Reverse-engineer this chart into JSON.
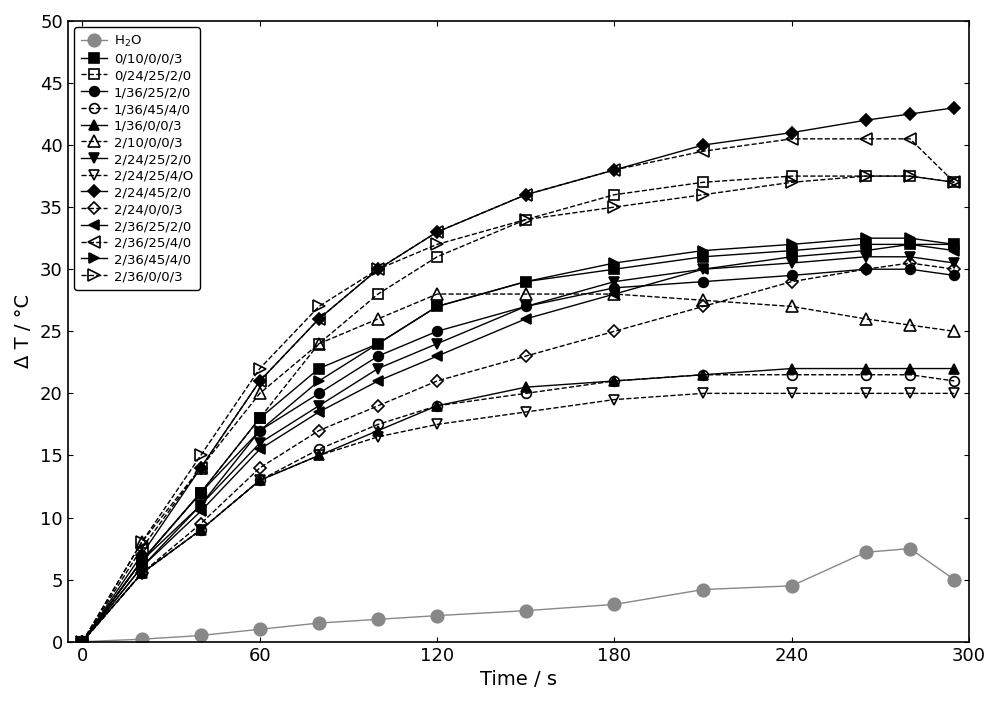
{
  "title": "",
  "xlabel": "Time / s",
  "ylabel": "Δ T / °C",
  "xlim": [
    -5,
    300
  ],
  "ylim": [
    0,
    50
  ],
  "xticks": [
    0,
    60,
    120,
    180,
    240,
    300
  ],
  "yticks": [
    0,
    5,
    10,
    15,
    20,
    25,
    30,
    35,
    40,
    45,
    50
  ],
  "series": [
    {
      "label": "H₂O",
      "marker": "o",
      "fillstyle": "full",
      "color": "#888888",
      "linestyle": "-",
      "markersize": 9,
      "linewidth": 1.0,
      "x": [
        0,
        20,
        40,
        60,
        80,
        100,
        120,
        150,
        180,
        210,
        240,
        265,
        280,
        295
      ],
      "y": [
        0,
        0.2,
        0.5,
        1.0,
        1.5,
        1.8,
        2.1,
        2.5,
        3.0,
        4.2,
        4.5,
        7.2,
        7.5,
        5.0
      ]
    },
    {
      "label": "0/10/0/0/3",
      "marker": "s",
      "fillstyle": "full",
      "color": "#000000",
      "linestyle": "-",
      "markersize": 7,
      "linewidth": 1.0,
      "x": [
        0,
        20,
        40,
        60,
        80,
        100,
        120,
        150,
        180,
        210,
        240,
        265,
        280,
        295
      ],
      "y": [
        0,
        6.5,
        12,
        18,
        22,
        24,
        27,
        29,
        30,
        31,
        31.5,
        32,
        32,
        32
      ]
    },
    {
      "label": "0/24/25/2/0",
      "marker": "s",
      "fillstyle": "none",
      "color": "#000000",
      "linestyle": "--",
      "markersize": 7,
      "linewidth": 1.0,
      "x": [
        0,
        20,
        40,
        60,
        80,
        100,
        120,
        150,
        180,
        210,
        240,
        265,
        280,
        295
      ],
      "y": [
        0,
        6.5,
        12,
        18,
        24,
        28,
        31,
        34,
        36,
        37,
        37.5,
        37.5,
        37.5,
        37
      ]
    },
    {
      "label": "1/36/25/2/0",
      "marker": "o",
      "fillstyle": "full",
      "color": "#000000",
      "linestyle": "-",
      "markersize": 7,
      "linewidth": 1.0,
      "x": [
        0,
        20,
        40,
        60,
        80,
        100,
        120,
        150,
        180,
        210,
        240,
        265,
        280,
        295
      ],
      "y": [
        0,
        6.5,
        12,
        17,
        20,
        23,
        25,
        27,
        28.5,
        29,
        29.5,
        30,
        30,
        29.5
      ]
    },
    {
      "label": "1/36/45/4/0",
      "marker": "o",
      "fillstyle": "none",
      "color": "#000000",
      "linestyle": "--",
      "markersize": 7,
      "linewidth": 1.0,
      "x": [
        0,
        20,
        40,
        60,
        80,
        100,
        120,
        150,
        180,
        210,
        240,
        265,
        280,
        295
      ],
      "y": [
        0,
        5.5,
        9,
        13,
        15.5,
        17.5,
        19,
        20,
        21,
        21.5,
        21.5,
        21.5,
        21.5,
        21
      ]
    },
    {
      "label": "1/36/0/0/3",
      "marker": "^",
      "fillstyle": "full",
      "color": "#000000",
      "linestyle": "-",
      "markersize": 7,
      "linewidth": 1.0,
      "x": [
        0,
        20,
        40,
        60,
        80,
        100,
        120,
        150,
        180,
        210,
        240,
        265,
        280,
        295
      ],
      "y": [
        0,
        5.5,
        9,
        13,
        15,
        17,
        19,
        20.5,
        21,
        21.5,
        22,
        22,
        22,
        22
      ]
    },
    {
      "label": "2/10/0/0/3",
      "marker": "^",
      "fillstyle": "none",
      "color": "#000000",
      "linestyle": "--",
      "markersize": 8,
      "linewidth": 1.0,
      "x": [
        0,
        20,
        40,
        60,
        80,
        100,
        120,
        150,
        180,
        210,
        240,
        265,
        280,
        295
      ],
      "y": [
        0,
        8,
        14,
        20,
        24,
        26,
        28,
        28,
        28,
        27.5,
        27,
        26,
        25.5,
        25
      ]
    },
    {
      "label": "2/24/25/2/0",
      "marker": "v",
      "fillstyle": "full",
      "color": "#000000",
      "linestyle": "-",
      "markersize": 7,
      "linewidth": 1.0,
      "x": [
        0,
        20,
        40,
        60,
        80,
        100,
        120,
        150,
        180,
        210,
        240,
        265,
        280,
        295
      ],
      "y": [
        0,
        6.5,
        11,
        16,
        19,
        22,
        24,
        27,
        29,
        30,
        30.5,
        31,
        31,
        30.5
      ]
    },
    {
      "label": "2/24/25/4/O",
      "marker": "v",
      "fillstyle": "none",
      "color": "#000000",
      "linestyle": "--",
      "markersize": 7,
      "linewidth": 1.0,
      "x": [
        0,
        20,
        40,
        60,
        80,
        100,
        120,
        150,
        180,
        210,
        240,
        265,
        280,
        295
      ],
      "y": [
        0,
        5.5,
        9,
        13,
        15,
        16.5,
        17.5,
        18.5,
        19.5,
        20,
        20,
        20,
        20,
        20
      ]
    },
    {
      "label": "2/24/45/2/0",
      "marker": "D",
      "fillstyle": "full",
      "color": "#000000",
      "linestyle": "-",
      "markersize": 6,
      "linewidth": 1.0,
      "x": [
        0,
        20,
        40,
        60,
        80,
        100,
        120,
        150,
        180,
        210,
        240,
        265,
        280,
        295
      ],
      "y": [
        0,
        7,
        14,
        21,
        26,
        30,
        33,
        36,
        38,
        40,
        41,
        42,
        42.5,
        43
      ]
    },
    {
      "label": "2/24/0/0/3",
      "marker": "D",
      "fillstyle": "none",
      "color": "#000000",
      "linestyle": "--",
      "markersize": 6,
      "linewidth": 1.0,
      "x": [
        0,
        20,
        40,
        60,
        80,
        100,
        120,
        150,
        180,
        210,
        240,
        265,
        280,
        295
      ],
      "y": [
        0,
        5.5,
        9.5,
        14,
        17,
        19,
        21,
        23,
        25,
        27,
        29,
        30,
        30.5,
        30
      ]
    },
    {
      "label": "2/36/25/2/0",
      "marker": "<",
      "fillstyle": "full",
      "color": "#000000",
      "linestyle": "-",
      "markersize": 7,
      "linewidth": 1.0,
      "x": [
        0,
        20,
        40,
        60,
        80,
        100,
        120,
        150,
        180,
        210,
        240,
        265,
        280,
        295
      ],
      "y": [
        0,
        6,
        10.5,
        15.5,
        18.5,
        21,
        23,
        26,
        28,
        30,
        31,
        31.5,
        32,
        31.5
      ]
    },
    {
      "label": "2/36/25/4/0",
      "marker": "<",
      "fillstyle": "none",
      "color": "#000000",
      "linestyle": "--",
      "markersize": 8,
      "linewidth": 1.0,
      "x": [
        0,
        20,
        40,
        60,
        80,
        100,
        120,
        150,
        180,
        210,
        240,
        265,
        280,
        295
      ],
      "y": [
        0,
        7.5,
        14,
        21,
        26,
        30,
        33,
        36,
        38,
        39.5,
        40.5,
        40.5,
        40.5,
        37
      ]
    },
    {
      "label": "2/36/45/4/0",
      "marker": ">",
      "fillstyle": "full",
      "color": "#000000",
      "linestyle": "-",
      "markersize": 7,
      "linewidth": 1.0,
      "x": [
        0,
        20,
        40,
        60,
        80,
        100,
        120,
        150,
        180,
        210,
        240,
        265,
        280,
        295
      ],
      "y": [
        0,
        6,
        11,
        17,
        21,
        24,
        27,
        29,
        30.5,
        31.5,
        32,
        32.5,
        32.5,
        32
      ]
    },
    {
      "label": "2/36/0/0/3",
      "marker": ">",
      "fillstyle": "none",
      "color": "#000000",
      "linestyle": "--",
      "markersize": 8,
      "linewidth": 1.0,
      "x": [
        0,
        20,
        40,
        60,
        80,
        100,
        120,
        150,
        180,
        210,
        240,
        265,
        280,
        295
      ],
      "y": [
        0,
        8,
        15,
        22,
        27,
        30,
        32,
        34,
        35,
        36,
        37,
        37.5,
        37.5,
        37
      ]
    }
  ],
  "legend_fontsize": 9.5,
  "axis_fontsize": 14,
  "tick_fontsize": 13,
  "background_color": "#ffffff"
}
